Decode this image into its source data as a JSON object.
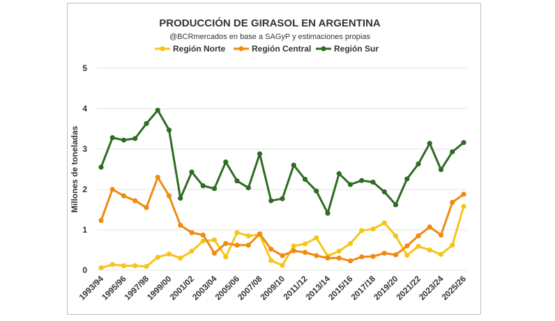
{
  "chart_data": {
    "type": "line",
    "title": "PRODUCCIÓN DE GIRASOL EN ARGENTINA",
    "subtitle": "@BCRmercados en base a SAGyP y estimaciones propias",
    "ylabel": "Millones de toneladas",
    "xlabel": "",
    "ylim": [
      0,
      5
    ],
    "yticks": [
      "0",
      "1",
      "2",
      "3",
      "4",
      "5"
    ],
    "grid": true,
    "legend_position": "top",
    "x": [
      "1993/94",
      "1994/95",
      "1995/96",
      "1996/97",
      "1997/98",
      "1998/99",
      "1999/00",
      "2000/01",
      "2001/02",
      "2002/03",
      "2003/04",
      "2004/05",
      "2005/06",
      "2006/07",
      "2007/08",
      "2008/09",
      "2009/10",
      "2010/11",
      "2011/12",
      "2012/13",
      "2013/14",
      "2014/15",
      "2015/16",
      "2016/17",
      "2017/18",
      "2018/19",
      "2019/20",
      "2020/21",
      "2021/22",
      "2022/23",
      "2023/24",
      "2024/25",
      "2025/26"
    ],
    "xtick_labels": [
      "1993/94",
      "1995/96",
      "1997/98",
      "1999/00",
      "2001/02",
      "2003/04",
      "2005/06",
      "2007/08",
      "2009/10",
      "2011/12",
      "2013/14",
      "2015/16",
      "2017/18",
      "2019/20",
      "2021/22",
      "2023/24",
      "2025/26"
    ],
    "series": [
      {
        "name": "Región Norte",
        "color": "#f5c518",
        "values": [
          0.06,
          0.14,
          0.11,
          0.11,
          0.09,
          0.32,
          0.4,
          0.3,
          0.47,
          0.72,
          0.75,
          0.33,
          0.93,
          0.85,
          0.88,
          0.24,
          0.12,
          0.6,
          0.65,
          0.8,
          0.35,
          0.47,
          0.66,
          0.98,
          1.02,
          1.17,
          0.85,
          0.37,
          0.59,
          0.5,
          0.39,
          0.62,
          1.58
        ]
      },
      {
        "name": "Región Central",
        "color": "#f08a10",
        "values": [
          1.23,
          2.0,
          1.84,
          1.72,
          1.55,
          2.3,
          1.84,
          1.11,
          0.93,
          0.87,
          0.42,
          0.66,
          0.62,
          0.62,
          0.9,
          0.52,
          0.36,
          0.48,
          0.44,
          0.36,
          0.3,
          0.3,
          0.23,
          0.33,
          0.34,
          0.42,
          0.38,
          0.6,
          0.85,
          1.07,
          0.87,
          1.68,
          1.88
        ]
      },
      {
        "name": "Región Sur",
        "color": "#2e6b23",
        "values": [
          2.55,
          3.28,
          3.22,
          3.26,
          3.63,
          3.96,
          3.47,
          1.78,
          2.43,
          2.09,
          2.02,
          2.68,
          2.21,
          2.04,
          2.88,
          1.72,
          1.77,
          2.6,
          2.25,
          1.96,
          1.41,
          2.39,
          2.12,
          2.22,
          2.18,
          1.94,
          1.62,
          2.26,
          2.63,
          3.14,
          2.49,
          2.93,
          3.16
        ]
      }
    ]
  }
}
